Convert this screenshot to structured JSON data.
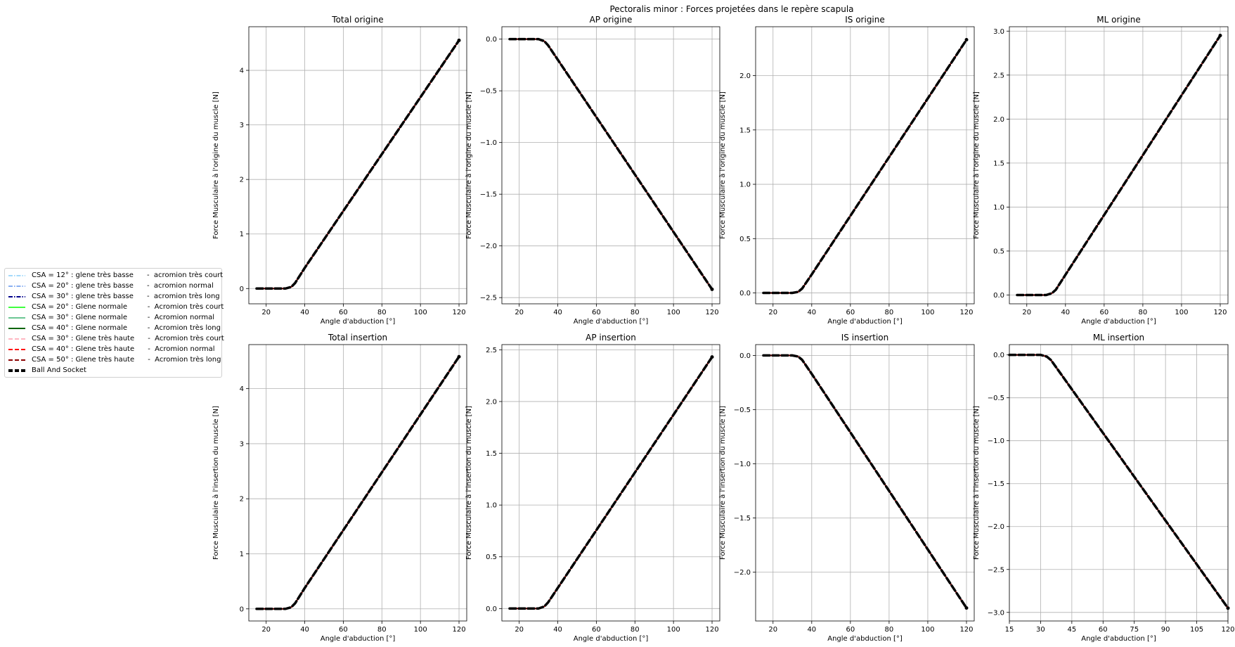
{
  "figure": {
    "suptitle": "Pectoralis minor : Forces projetées dans le repère scapula"
  },
  "legend": {
    "placement": "left",
    "entries": [
      {
        "label": "CSA = 12° : glene très basse      -  acromion très court",
        "color": "#87cefa",
        "style": "dashdot",
        "width": 1.5
      },
      {
        "label": "CSA = 20° : glene très basse      -  acromion normal",
        "color": "#6495ed",
        "style": "dashdot",
        "width": 1.5
      },
      {
        "label": "CSA = 30° : glene très basse      -  acromion très long",
        "color": "#00008b",
        "style": "dashdot",
        "width": 2
      },
      {
        "label": "CSA = 20° : Glene normale         -  Acromion très court",
        "color": "#00ff00",
        "style": "solid",
        "width": 1.5
      },
      {
        "label": "CSA = 30° : Glene normale         -  Acromion normal",
        "color": "#3cb371",
        "style": "solid",
        "width": 1.5
      },
      {
        "label": "CSA = 40° : Glene normale         -  Acromion très long",
        "color": "#006400",
        "style": "solid",
        "width": 2
      },
      {
        "label": "CSA = 30° : Glene très haute      -  Acromion très court",
        "color": "#ffb6c1",
        "style": "dashed",
        "width": 2
      },
      {
        "label": "CSA = 40° : Glene très haute      -  Acromion normal",
        "color": "#ff0000",
        "style": "dashed",
        "width": 2
      },
      {
        "label": "CSA = 50° : Glene très haute      -  Acromion très long",
        "color": "#8b0000",
        "style": "dashed",
        "width": 2
      },
      {
        "label": "Ball And Socket",
        "color": "#000000",
        "style": "dashed",
        "width": 4
      }
    ]
  },
  "chart_data": [
    {
      "type": "line",
      "title": "Total origine",
      "xlabel": "Angle d'abduction [°]",
      "ylabel": "Force Musculaire à l'origine du muscle [N]",
      "xlim": [
        11,
        124
      ],
      "ylim": [
        -0.28,
        4.8
      ],
      "xticks": [
        20,
        40,
        60,
        80,
        100,
        120
      ],
      "yticks": [
        0,
        1,
        2,
        3,
        4
      ],
      "grid": true,
      "x": [
        15,
        20,
        25,
        30,
        33,
        35,
        40,
        120
      ],
      "y": [
        0,
        0,
        0,
        0,
        0.03,
        0.1,
        0.38,
        4.55
      ]
    },
    {
      "type": "line",
      "title": "AP origine",
      "xlabel": "Angle d'abduction [°]",
      "ylabel": "Force Musculaire à l'origine du muscle [N]",
      "xlim": [
        11,
        124
      ],
      "ylim": [
        -2.56,
        0.12
      ],
      "xticks": [
        20,
        40,
        60,
        80,
        100,
        120
      ],
      "yticks": [
        0.0,
        -0.5,
        -1.0,
        -1.5,
        -2.0,
        -2.5
      ],
      "grid": true,
      "x": [
        15,
        20,
        25,
        30,
        33,
        35,
        40,
        120
      ],
      "y": [
        0,
        0,
        0,
        0,
        -0.02,
        -0.06,
        -0.2,
        -2.42
      ]
    },
    {
      "type": "line",
      "title": "IS origine",
      "xlabel": "Angle d'abduction [°]",
      "ylabel": "Force Musculaire à l'origine du muscle [N]",
      "xlim": [
        11,
        124
      ],
      "ylim": [
        -0.1,
        2.45
      ],
      "xticks": [
        20,
        40,
        60,
        80,
        100,
        120
      ],
      "yticks": [
        0.0,
        0.5,
        1.0,
        1.5,
        2.0
      ],
      "grid": true,
      "x": [
        15,
        20,
        25,
        30,
        33,
        35,
        40,
        120
      ],
      "y": [
        0,
        0,
        0,
        0,
        0.01,
        0.04,
        0.17,
        2.33
      ]
    },
    {
      "type": "line",
      "title": "ML origine",
      "xlabel": "Angle d'abduction [°]",
      "ylabel": "Force Musculaire à l'origine du muscle [N]",
      "xlim": [
        11,
        124
      ],
      "ylim": [
        -0.1,
        3.05
      ],
      "xticks": [
        20,
        40,
        60,
        80,
        100,
        120
      ],
      "yticks": [
        0.0,
        0.5,
        1.0,
        1.5,
        2.0,
        2.5,
        3.0
      ],
      "grid": true,
      "x": [
        15,
        20,
        25,
        30,
        33,
        35,
        40,
        120
      ],
      "y": [
        0,
        0,
        0,
        0,
        0.02,
        0.06,
        0.23,
        2.95
      ]
    },
    {
      "type": "line",
      "title": "Total insertion",
      "xlabel": "Angle d'abduction [°]",
      "ylabel": "Force Musculaire à l'insertion du muscle [N]",
      "xlim": [
        11,
        124
      ],
      "ylim": [
        -0.22,
        4.8
      ],
      "xticks": [
        20,
        40,
        60,
        80,
        100,
        120
      ],
      "yticks": [
        0,
        1,
        2,
        3,
        4
      ],
      "grid": true,
      "x": [
        15,
        20,
        25,
        30,
        33,
        35,
        40,
        120
      ],
      "y": [
        0,
        0,
        0,
        0,
        0.03,
        0.1,
        0.38,
        4.58
      ]
    },
    {
      "type": "line",
      "title": "AP insertion",
      "xlabel": "Angle d'abduction [°]",
      "ylabel": "Force Musculaire à l'insertion du muscle [N]",
      "xlim": [
        11,
        124
      ],
      "ylim": [
        -0.12,
        2.55
      ],
      "xticks": [
        20,
        40,
        60,
        80,
        100,
        120
      ],
      "yticks": [
        0.0,
        0.5,
        1.0,
        1.5,
        2.0,
        2.5
      ],
      "grid": true,
      "x": [
        15,
        20,
        25,
        30,
        33,
        35,
        40,
        120
      ],
      "y": [
        0,
        0,
        0,
        0,
        0.02,
        0.06,
        0.2,
        2.43
      ]
    },
    {
      "type": "line",
      "title": "IS insertion",
      "xlabel": "Angle d'abduction [°]",
      "ylabel": "Force Musculaire à l'insertion du muscle [N]",
      "xlim": [
        11,
        124
      ],
      "ylim": [
        -2.45,
        0.1
      ],
      "xticks": [
        20,
        40,
        60,
        80,
        100,
        120
      ],
      "yticks": [
        0.0,
        -0.5,
        -1.0,
        -1.5,
        -2.0
      ],
      "grid": true,
      "x": [
        15,
        20,
        25,
        30,
        33,
        35,
        40,
        120
      ],
      "y": [
        0,
        0,
        0,
        0,
        -0.01,
        -0.04,
        -0.17,
        -2.33
      ]
    },
    {
      "type": "line",
      "title": "ML insertion",
      "xlabel": "Angle d'abduction [°]",
      "ylabel": "Force Musculaire à l'insertion du muscle [N]",
      "xlim": [
        15,
        120
      ],
      "ylim": [
        -3.1,
        0.12
      ],
      "xticks": [
        15,
        30,
        45,
        60,
        75,
        90,
        105,
        120
      ],
      "yticks": [
        0.0,
        -0.5,
        -1.0,
        -1.5,
        -2.0,
        -2.5,
        -3.0
      ],
      "grid": true,
      "x": [
        15,
        20,
        25,
        30,
        33,
        35,
        40,
        120
      ],
      "y": [
        0,
        0,
        0,
        0,
        -0.02,
        -0.06,
        -0.23,
        -2.95
      ]
    }
  ]
}
